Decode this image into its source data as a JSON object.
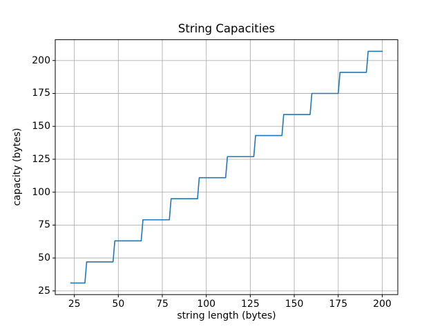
{
  "chart_data": {
    "type": "line",
    "style": "step",
    "title": "String Capacities",
    "xlabel": "string length (bytes)",
    "ylabel": "capacity (bytes)",
    "xlim": [
      14.15,
      208.85
    ],
    "ylim": [
      22.2,
      215.8
    ],
    "xticks": [
      25,
      50,
      75,
      100,
      125,
      150,
      175,
      200
    ],
    "yticks": [
      25,
      50,
      75,
      100,
      125,
      150,
      175,
      200
    ],
    "grid": true,
    "legend": "none",
    "colors": {
      "line": "#1f77b4",
      "grid": "#b0b0b0",
      "spine": "#000000",
      "background": "#ffffff",
      "text": "#000000"
    },
    "series": [
      {
        "name": "capacity",
        "points": [
          [
            23,
            31
          ],
          [
            31,
            31
          ],
          [
            32,
            47
          ],
          [
            47,
            47
          ],
          [
            48,
            63
          ],
          [
            63,
            63
          ],
          [
            64,
            79
          ],
          [
            79,
            79
          ],
          [
            80,
            95
          ],
          [
            95,
            95
          ],
          [
            96,
            111
          ],
          [
            111,
            111
          ],
          [
            112,
            127
          ],
          [
            127,
            127
          ],
          [
            128,
            143
          ],
          [
            143,
            143
          ],
          [
            144,
            159
          ],
          [
            159,
            159
          ],
          [
            160,
            175
          ],
          [
            175,
            175
          ],
          [
            176,
            191
          ],
          [
            191,
            191
          ],
          [
            192,
            207
          ],
          [
            200,
            207
          ]
        ]
      }
    ]
  }
}
